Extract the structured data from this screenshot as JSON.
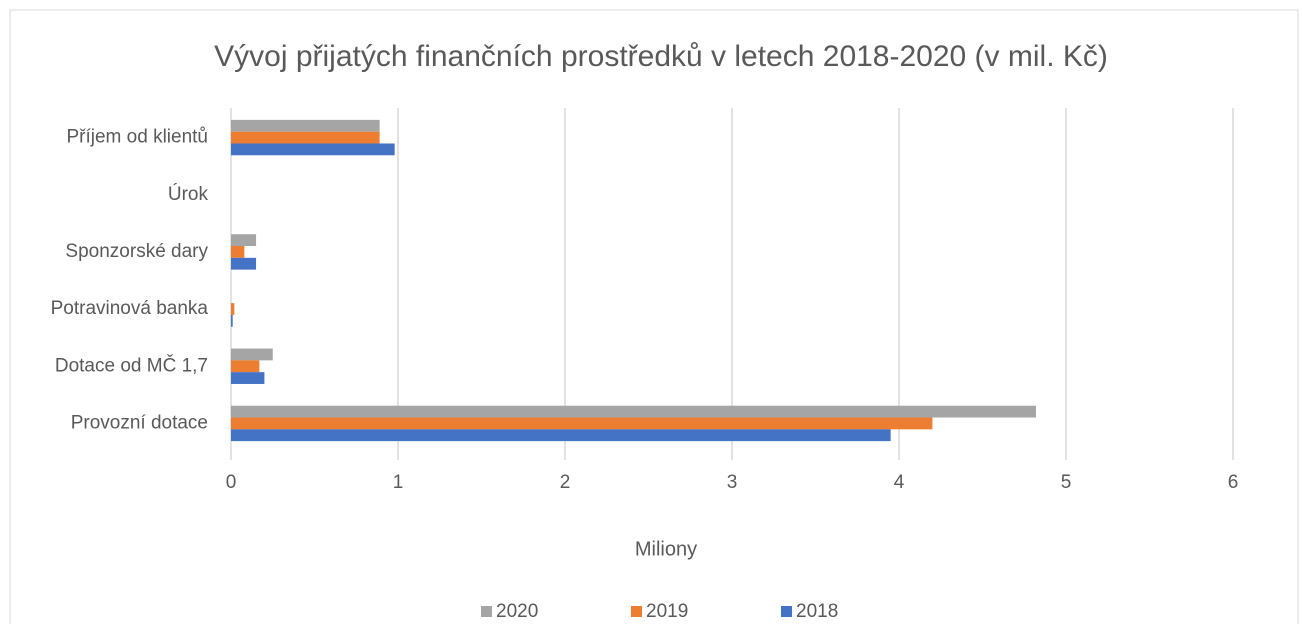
{
  "chart_data": {
    "type": "hbar",
    "title": "Vývoj přijatých finančních prostředků v letech 2018-2020 (v mil. Kč)",
    "x_label": "Miliony",
    "categories": [
      "Příjem od klientů",
      "Úrok",
      "Sponzorské dary",
      "Potravinová banka",
      "Dotace od MČ 1,7",
      "Provozní dotace"
    ],
    "series": [
      {
        "name": "2020",
        "color": "#a5a5a5",
        "values": [
          0.89,
          0,
          0.15,
          0,
          0.25,
          4.82
        ]
      },
      {
        "name": "2019",
        "color": "#ed7d31",
        "values": [
          0.89,
          0,
          0.08,
          0.02,
          0.17,
          4.2
        ]
      },
      {
        "name": "2018",
        "color": "#4472c4",
        "values": [
          0.98,
          0,
          0.15,
          0.01,
          0.2,
          3.95
        ]
      }
    ],
    "xlim": [
      0,
      6
    ],
    "xticks": [
      0,
      1,
      2,
      3,
      4,
      5,
      6
    ],
    "grid": true,
    "legend": "bottom"
  }
}
